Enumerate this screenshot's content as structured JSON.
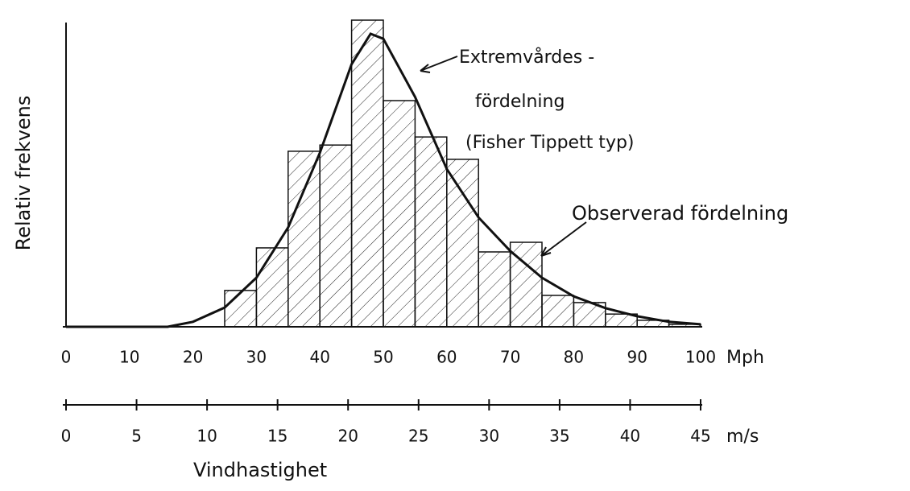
{
  "chart_data": {
    "type": "histogram",
    "ylabel": "Relativ frekvens",
    "xlabel": "Vindhastighet",
    "x_unit": "Mph",
    "x2_unit": "m/s",
    "annotations": [
      "Extremvårdes -",
      "fördelning",
      "(Fisher Tippett typ)",
      "Observerad fördelning"
    ],
    "bins": [
      25,
      30,
      35,
      40,
      45,
      50,
      55,
      60,
      65,
      70,
      75,
      80,
      85,
      90,
      95,
      100
    ],
    "counts": [
      11.7,
      25.4,
      56.5,
      58.5,
      98.7,
      72.8,
      61.1,
      53.9,
      24.1,
      27.2,
      10.1,
      7.8,
      4.1,
      2.1,
      0.8
    ],
    "curve": {
      "x": [
        0,
        10,
        16,
        20,
        25,
        30,
        35,
        40,
        45,
        48,
        50,
        55,
        60,
        65,
        70,
        75,
        80,
        85,
        90,
        95,
        100
      ],
      "values": [
        0,
        0,
        0,
        1.6,
        6.2,
        15.8,
        32,
        56,
        84.5,
        94.3,
        92.7,
        74,
        50.8,
        35.2,
        24.4,
        15.8,
        9.8,
        6,
        3.4,
        1.6,
        0.8
      ]
    },
    "color": "#111111",
    "xlim": [
      0,
      100
    ],
    "xticks": [
      0,
      10,
      20,
      30,
      40,
      50,
      60,
      70,
      80,
      90,
      100
    ],
    "x2lim": [
      0,
      45
    ],
    "x2ticks": [
      0,
      5,
      10,
      15,
      20,
      25,
      30,
      35,
      40,
      45
    ],
    "ylim": [
      0,
      100
    ]
  }
}
